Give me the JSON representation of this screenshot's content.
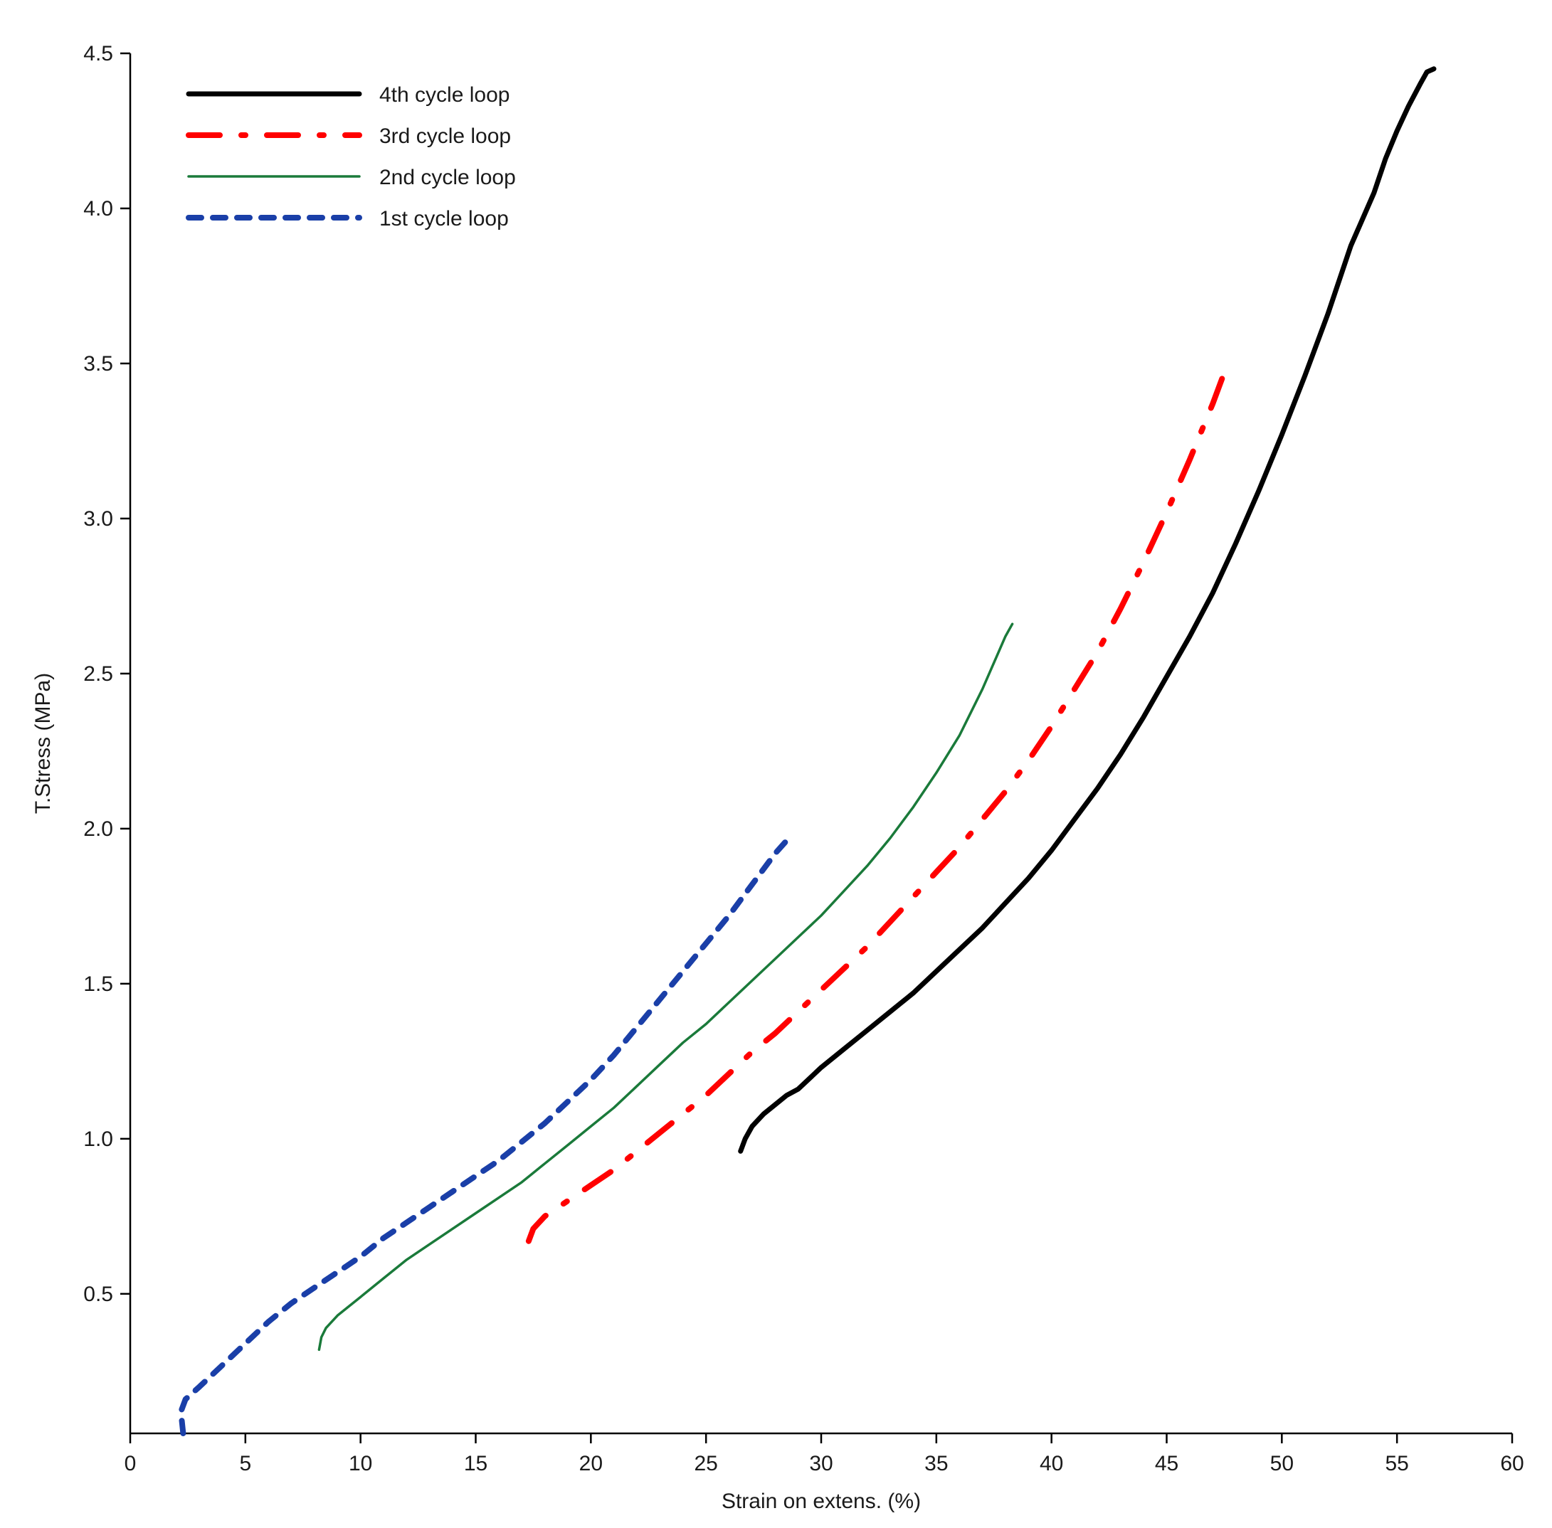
{
  "chart_data": {
    "type": "line",
    "title": "",
    "xlabel": "Strain on extens. (%)",
    "ylabel": "T.Stress (MPa)",
    "xlim": [
      0,
      60
    ],
    "ylim": [
      0.05,
      4.5
    ],
    "xticks": [
      0,
      5,
      10,
      15,
      20,
      25,
      30,
      35,
      40,
      45,
      50,
      55,
      60
    ],
    "xtick_labels": [
      "0",
      "5",
      "10",
      "15",
      "20",
      "25",
      "30",
      "35",
      "40",
      "45",
      "50",
      "55",
      "60"
    ],
    "yticks": [
      0.5,
      1.0,
      1.5,
      2.0,
      2.5,
      3.0,
      3.5,
      4.0,
      4.5
    ],
    "ytick_labels": [
      "0.5",
      "1.0",
      "1.5",
      "2.0",
      "2.5",
      "3.0",
      "3.5",
      "4.0",
      "4.5"
    ],
    "grid": false,
    "legend_position": "top-left",
    "series": [
      {
        "name": "4th cycle loop",
        "color": "#000000",
        "style": "solid-thick",
        "x": [
          26.5,
          26.7,
          27.0,
          27.5,
          28.0,
          28.5,
          29.0,
          30.0,
          31.0,
          32.0,
          33.0,
          34.0,
          35.0,
          36.0,
          37.0,
          38.0,
          39.0,
          40.0,
          41.0,
          42.0,
          43.0,
          44.0,
          45.0,
          46.0,
          47.0,
          48.0,
          49.0,
          50.0,
          51.0,
          52.0,
          53.0,
          54.0,
          54.5,
          55.0,
          55.5,
          56.0,
          56.3,
          56.6
        ],
        "y": [
          0.96,
          1.0,
          1.04,
          1.08,
          1.11,
          1.14,
          1.16,
          1.23,
          1.29,
          1.35,
          1.41,
          1.47,
          1.54,
          1.61,
          1.68,
          1.76,
          1.84,
          1.93,
          2.03,
          2.13,
          2.24,
          2.36,
          2.49,
          2.62,
          2.76,
          2.92,
          3.09,
          3.27,
          3.46,
          3.66,
          3.88,
          4.05,
          4.16,
          4.25,
          4.33,
          4.4,
          4.44,
          4.45
        ]
      },
      {
        "name": "3rd cycle loop",
        "color": "#ff0000",
        "style": "dash-dot",
        "x": [
          17.3,
          17.5,
          18.0,
          19.0,
          20.0,
          21.0,
          22.0,
          23.0,
          24.0,
          25.0,
          26.0,
          27.0,
          28.0,
          29.0,
          30.0,
          31.0,
          32.0,
          33.0,
          34.0,
          35.0,
          36.0,
          37.0,
          38.0,
          39.0,
          40.0,
          41.0,
          42.0,
          43.0,
          44.0,
          45.0,
          46.0,
          47.0,
          47.5
        ],
        "y": [
          0.67,
          0.71,
          0.75,
          0.8,
          0.85,
          0.9,
          0.96,
          1.02,
          1.08,
          1.14,
          1.21,
          1.28,
          1.34,
          1.41,
          1.48,
          1.55,
          1.62,
          1.7,
          1.78,
          1.86,
          1.94,
          2.03,
          2.12,
          2.22,
          2.33,
          2.45,
          2.57,
          2.71,
          2.86,
          3.02,
          3.19,
          3.37,
          3.47
        ]
      },
      {
        "name": "2nd cycle loop",
        "color": "#1a7a3a",
        "style": "solid-thin",
        "x": [
          8.2,
          8.3,
          8.5,
          9.0,
          10.0,
          11.0,
          12.0,
          13.0,
          14.0,
          15.0,
          16.0,
          17.0,
          18.0,
          19.0,
          20.0,
          21.0,
          22.0,
          23.0,
          24.0,
          25.0,
          26.0,
          27.0,
          28.0,
          29.0,
          30.0,
          31.0,
          32.0,
          33.0,
          34.0,
          35.0,
          36.0,
          37.0,
          38.0,
          38.3
        ],
        "y": [
          0.32,
          0.36,
          0.39,
          0.43,
          0.49,
          0.55,
          0.61,
          0.66,
          0.71,
          0.76,
          0.81,
          0.86,
          0.92,
          0.98,
          1.04,
          1.1,
          1.17,
          1.24,
          1.31,
          1.37,
          1.44,
          1.51,
          1.58,
          1.65,
          1.72,
          1.8,
          1.88,
          1.97,
          2.07,
          2.18,
          2.3,
          2.45,
          2.62,
          2.66
        ]
      },
      {
        "name": "1st cycle loop",
        "color": "#1a3fa8",
        "style": "dashed",
        "x": [
          2.3,
          2.2,
          2.4,
          3.0,
          4.0,
          5.0,
          6.0,
          7.0,
          8.0,
          9.0,
          10.0,
          11.0,
          12.0,
          13.0,
          14.0,
          15.0,
          16.0,
          17.0,
          18.0,
          19.0,
          20.0,
          21.0,
          22.0,
          23.0,
          24.0,
          25.0,
          26.0,
          27.0,
          28.0,
          28.6
        ],
        "y": [
          0.05,
          0.12,
          0.16,
          0.2,
          0.27,
          0.34,
          0.41,
          0.47,
          0.52,
          0.57,
          0.62,
          0.68,
          0.73,
          0.78,
          0.83,
          0.88,
          0.93,
          0.99,
          1.05,
          1.12,
          1.19,
          1.27,
          1.36,
          1.45,
          1.54,
          1.63,
          1.72,
          1.82,
          1.92,
          1.97
        ]
      }
    ]
  }
}
